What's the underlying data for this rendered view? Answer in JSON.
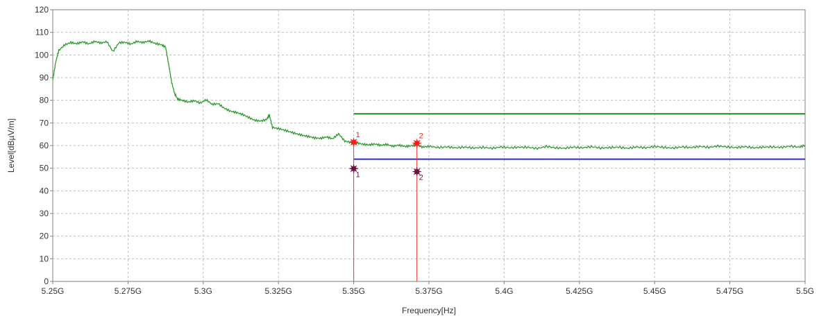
{
  "chart_data": {
    "type": "line",
    "xlabel": "Frequency[Hz]",
    "ylabel": "Level[dBµV/m]",
    "xlim": [
      5.25,
      5.5
    ],
    "ylim": [
      0,
      120
    ],
    "grid": true,
    "x_ticks": [
      {
        "value": 5.25,
        "label": "5.25G"
      },
      {
        "value": 5.275,
        "label": "5.275G"
      },
      {
        "value": 5.3,
        "label": "5.3G"
      },
      {
        "value": 5.325,
        "label": "5.325G"
      },
      {
        "value": 5.35,
        "label": "5.35G"
      },
      {
        "value": 5.375,
        "label": "5.375G"
      },
      {
        "value": 5.4,
        "label": "5.4G"
      },
      {
        "value": 5.425,
        "label": "5.425G"
      },
      {
        "value": 5.45,
        "label": "5.45G"
      },
      {
        "value": 5.475,
        "label": "5.475G"
      },
      {
        "value": 5.5,
        "label": "5.5G"
      }
    ],
    "y_ticks": [
      0,
      10,
      20,
      30,
      40,
      50,
      60,
      70,
      80,
      90,
      100,
      110,
      120
    ],
    "trace": {
      "color": "#2e9a2e",
      "x": [
        5.25,
        5.251,
        5.252,
        5.254,
        5.256,
        5.258,
        5.26,
        5.262,
        5.264,
        5.266,
        5.268,
        5.27,
        5.272,
        5.274,
        5.276,
        5.278,
        5.28,
        5.282,
        5.284,
        5.286,
        5.2875,
        5.2885,
        5.2895,
        5.2905,
        5.2915,
        5.293,
        5.295,
        5.297,
        5.299,
        5.301,
        5.303,
        5.305,
        5.307,
        5.309,
        5.311,
        5.313,
        5.315,
        5.317,
        5.319,
        5.321,
        5.322,
        5.323,
        5.325,
        5.327,
        5.329,
        5.331,
        5.333,
        5.335,
        5.337,
        5.339,
        5.341,
        5.343,
        5.345,
        5.347,
        5.349,
        5.351,
        5.353,
        5.355,
        5.357,
        5.359,
        5.361,
        5.363,
        5.365,
        5.367,
        5.369,
        5.371,
        5.373,
        5.375,
        5.378,
        5.381,
        5.384,
        5.387,
        5.39,
        5.393,
        5.396,
        5.399,
        5.402,
        5.405,
        5.408,
        5.411,
        5.414,
        5.417,
        5.42,
        5.423,
        5.426,
        5.429,
        5.432,
        5.435,
        5.438,
        5.441,
        5.444,
        5.447,
        5.45,
        5.453,
        5.456,
        5.459,
        5.462,
        5.465,
        5.468,
        5.471,
        5.474,
        5.477,
        5.48,
        5.483,
        5.486,
        5.489,
        5.492,
        5.495,
        5.498,
        5.5
      ],
      "y": [
        89,
        97,
        102,
        104.5,
        105.5,
        105,
        105.8,
        104.9,
        106,
        105.3,
        105.9,
        101.5,
        105.4,
        105.6,
        104.8,
        106,
        105.5,
        106.2,
        105.1,
        104.6,
        103.5,
        96,
        88,
        83,
        80.5,
        80,
        79.2,
        79.8,
        78.8,
        80.2,
        78.2,
        78.5,
        76.5,
        75.2,
        74.6,
        73.8,
        72.5,
        71.2,
        70.8,
        71.5,
        73.5,
        68,
        67.5,
        66.8,
        66,
        65.2,
        64.5,
        64,
        63.4,
        63.2,
        63.8,
        63,
        65.2,
        62,
        61.4,
        61.2,
        60.6,
        60.3,
        60.7,
        60.1,
        60.5,
        59.7,
        60.2,
        59.6,
        59.9,
        60.2,
        59.3,
        59.7,
        59.1,
        59.4,
        59.0,
        59.3,
        58.9,
        59.2,
        58.8,
        59.4,
        59.0,
        59.3,
        59.2,
        58.7,
        59.6,
        59.0,
        58.8,
        59.3,
        59.0,
        59.5,
        58.9,
        59.1,
        59.3,
        58.8,
        59.4,
        59.0,
        59.6,
        59.2,
        58.9,
        59.4,
        59.1,
        59.6,
        59.2,
        59.8,
        59.4,
        59.1,
        59.5,
        59.0,
        59.3,
        59.4,
        59.2,
        59.7,
        59.3,
        60.1
      ]
    },
    "limit_lines": [
      {
        "color": "#1a8a1a",
        "x_start": 5.35,
        "x_end": 5.5,
        "y": 74
      },
      {
        "color": "#2b2bd6",
        "x_start": 5.35,
        "x_end": 5.5,
        "y": 54
      }
    ],
    "markers": [
      {
        "label": "1",
        "x": 5.35,
        "peak": 61.5,
        "avg": 49.8,
        "color_peak": "#ff1a1a",
        "color_avg": "#6a1040",
        "line_color": "#ff3030"
      },
      {
        "label": "2",
        "x": 5.371,
        "peak": 61.0,
        "avg": 48.5,
        "color_peak": "#ff1a1a",
        "color_avg": "#6a1040",
        "line_color": "#ff3030"
      }
    ]
  }
}
